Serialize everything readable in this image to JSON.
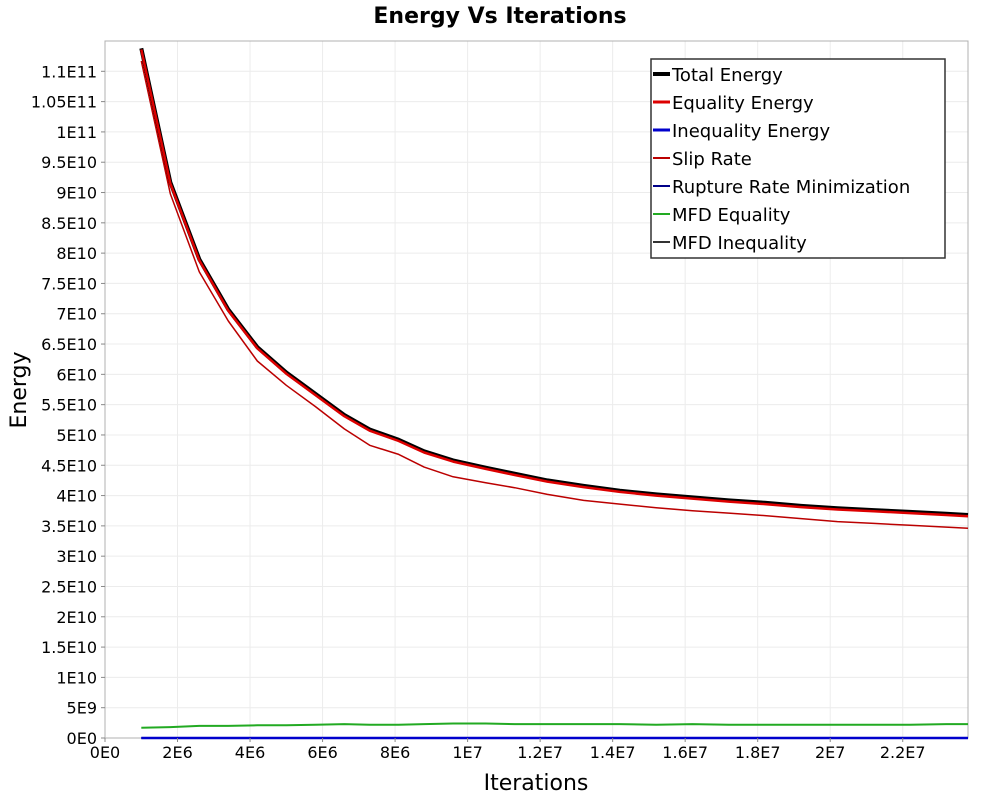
{
  "chart_data": {
    "type": "line",
    "title": "Energy Vs Iterations",
    "xlabel": "Iterations",
    "ylabel": "Energy",
    "grid": true,
    "legend_position": "top-right",
    "xlim": [
      0,
      23800000
    ],
    "ylim": [
      0,
      115000000000
    ],
    "x_ticks": [
      {
        "value": 0,
        "label": "0E0"
      },
      {
        "value": 2000000,
        "label": "2E6"
      },
      {
        "value": 4000000,
        "label": "4E6"
      },
      {
        "value": 6000000,
        "label": "6E6"
      },
      {
        "value": 8000000,
        "label": "8E6"
      },
      {
        "value": 10000000,
        "label": "1E7"
      },
      {
        "value": 12000000,
        "label": "1.2E7"
      },
      {
        "value": 14000000,
        "label": "1.4E7"
      },
      {
        "value": 16000000,
        "label": "1.6E7"
      },
      {
        "value": 18000000,
        "label": "1.8E7"
      },
      {
        "value": 20000000,
        "label": "2E7"
      },
      {
        "value": 22000000,
        "label": "2.2E7"
      }
    ],
    "y_ticks": [
      {
        "value": 0,
        "label": "0E0"
      },
      {
        "value": 5000000000,
        "label": "5E9"
      },
      {
        "value": 10000000000,
        "label": "1E10"
      },
      {
        "value": 15000000000,
        "label": "1.5E10"
      },
      {
        "value": 20000000000,
        "label": "2E10"
      },
      {
        "value": 25000000000,
        "label": "2.5E10"
      },
      {
        "value": 30000000000,
        "label": "3E10"
      },
      {
        "value": 35000000000,
        "label": "3.5E10"
      },
      {
        "value": 40000000000,
        "label": "4E10"
      },
      {
        "value": 45000000000,
        "label": "4.5E10"
      },
      {
        "value": 50000000000,
        "label": "5E10"
      },
      {
        "value": 55000000000,
        "label": "5.5E10"
      },
      {
        "value": 60000000000,
        "label": "6E10"
      },
      {
        "value": 65000000000,
        "label": "6.5E10"
      },
      {
        "value": 70000000000,
        "label": "7E10"
      },
      {
        "value": 75000000000,
        "label": "7.5E10"
      },
      {
        "value": 80000000000,
        "label": "8E10"
      },
      {
        "value": 85000000000,
        "label": "8.5E10"
      },
      {
        "value": 90000000000,
        "label": "9E10"
      },
      {
        "value": 95000000000,
        "label": "9.5E10"
      },
      {
        "value": 100000000000,
        "label": "1E11"
      },
      {
        "value": 105000000000,
        "label": "1.05E11"
      },
      {
        "value": 110000000000,
        "label": "1.1E11"
      }
    ],
    "x": [
      1000000,
      1800000,
      2600000,
      3400000,
      4200000,
      5000000,
      5800000,
      6600000,
      7300000,
      8100000,
      8800000,
      9600000,
      10500000,
      11300000,
      12200000,
      13200000,
      14200000,
      15200000,
      16200000,
      17200000,
      18200000,
      19200000,
      20200000,
      21200000,
      22200000,
      23200000,
      23800000
    ],
    "series": [
      {
        "name": "Total Energy",
        "color": "#000000",
        "values": [
          113800000000,
          91700000000,
          79000000000,
          70700000000,
          64500000000,
          60300000000,
          56800000000,
          53300000000,
          50900000000,
          49200000000,
          47300000000,
          45800000000,
          44600000000,
          43600000000,
          42500000000,
          41600000000,
          40800000000,
          40200000000,
          39700000000,
          39200000000,
          38800000000,
          38300000000,
          37900000000,
          37600000000,
          37300000000,
          37000000000,
          36800000000
        ]
      },
      {
        "name": "Equality Energy",
        "color": "#dd0000",
        "values": [
          113600000000,
          91500000000,
          78800000000,
          70500000000,
          64300000000,
          60100000000,
          56600000000,
          53100000000,
          50700000000,
          49000000000,
          47100000000,
          45600000000,
          44400000000,
          43400000000,
          42300000000,
          41400000000,
          40600000000,
          40000000000,
          39500000000,
          39000000000,
          38600000000,
          38100000000,
          37700000000,
          37400000000,
          37100000000,
          36800000000,
          36600000000
        ]
      },
      {
        "name": "Inequality Energy",
        "color": "#0000cc",
        "values": [
          0,
          0,
          0,
          0,
          0,
          0,
          0,
          0,
          0,
          0,
          0,
          0,
          0,
          0,
          0,
          0,
          0,
          0,
          0,
          0,
          0,
          0,
          0,
          0,
          0,
          0,
          0
        ]
      },
      {
        "name": "Slip Rate",
        "color": "#bb0000",
        "values": [
          111700000000,
          89800000000,
          76900000000,
          68800000000,
          62200000000,
          58200000000,
          54700000000,
          51000000000,
          48300000000,
          46800000000,
          44700000000,
          43100000000,
          42100000000,
          41300000000,
          40200000000,
          39200000000,
          38600000000,
          38000000000,
          37500000000,
          37100000000,
          36700000000,
          36200000000,
          35700000000,
          35400000000,
          35100000000,
          34800000000,
          34600000000
        ]
      },
      {
        "name": "Rupture Rate Minimization",
        "color": "#000088",
        "values": [
          0,
          0,
          0,
          0,
          0,
          0,
          0,
          0,
          0,
          0,
          0,
          0,
          0,
          0,
          0,
          0,
          0,
          0,
          0,
          0,
          0,
          0,
          0,
          0,
          0,
          0,
          0
        ]
      },
      {
        "name": "MFD Equality",
        "color": "#22aa22",
        "values": [
          1700000000,
          1800000000,
          2000000000,
          2000000000,
          2100000000,
          2100000000,
          2200000000,
          2300000000,
          2200000000,
          2200000000,
          2300000000,
          2400000000,
          2400000000,
          2300000000,
          2300000000,
          2300000000,
          2300000000,
          2200000000,
          2300000000,
          2200000000,
          2200000000,
          2200000000,
          2200000000,
          2200000000,
          2200000000,
          2300000000,
          2300000000
        ]
      },
      {
        "name": "MFD Inequality",
        "color": "#333333",
        "values": [
          0,
          0,
          0,
          0,
          0,
          0,
          0,
          0,
          0,
          0,
          0,
          0,
          0,
          0,
          0,
          0,
          0,
          0,
          0,
          0,
          0,
          0,
          0,
          0,
          0,
          0,
          0
        ]
      }
    ]
  }
}
